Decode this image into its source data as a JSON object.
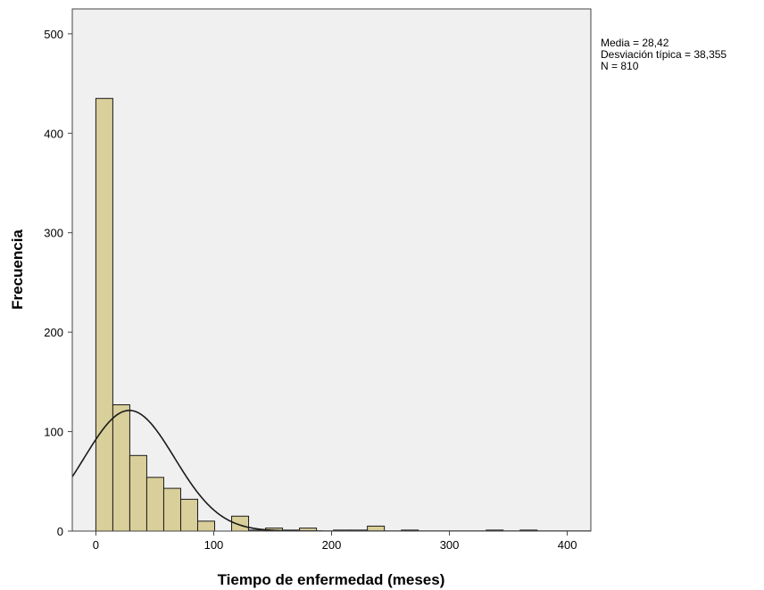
{
  "chart_data": {
    "type": "bar",
    "subtype": "histogram",
    "title": "",
    "xlabel": "Tiempo de enfermedad (meses)",
    "ylabel": "Frecuencia",
    "xlim": [
      -20,
      420
    ],
    "ylim": [
      0,
      525
    ],
    "x_ticks": [
      0,
      100,
      200,
      300,
      400
    ],
    "y_ticks": [
      0,
      100,
      200,
      300,
      400,
      500
    ],
    "bin_width": 14.4,
    "bins": [
      {
        "start": 0,
        "end": 14.4,
        "count": 435
      },
      {
        "start": 14.4,
        "end": 28.8,
        "count": 127
      },
      {
        "start": 28.8,
        "end": 43.2,
        "count": 76
      },
      {
        "start": 43.2,
        "end": 57.6,
        "count": 54
      },
      {
        "start": 57.6,
        "end": 72.0,
        "count": 43
      },
      {
        "start": 72.0,
        "end": 86.4,
        "count": 32
      },
      {
        "start": 86.4,
        "end": 100.8,
        "count": 10
      },
      {
        "start": 100.8,
        "end": 115.2,
        "count": 0
      },
      {
        "start": 115.2,
        "end": 129.6,
        "count": 15
      },
      {
        "start": 129.6,
        "end": 144.0,
        "count": 1
      },
      {
        "start": 144.0,
        "end": 158.4,
        "count": 3
      },
      {
        "start": 158.4,
        "end": 172.8,
        "count": 1
      },
      {
        "start": 172.8,
        "end": 187.2,
        "count": 3
      },
      {
        "start": 187.2,
        "end": 201.6,
        "count": 0
      },
      {
        "start": 201.6,
        "end": 216.0,
        "count": 1
      },
      {
        "start": 216.0,
        "end": 230.4,
        "count": 1
      },
      {
        "start": 230.4,
        "end": 244.8,
        "count": 5
      },
      {
        "start": 244.8,
        "end": 259.2,
        "count": 0
      },
      {
        "start": 259.2,
        "end": 273.6,
        "count": 1
      },
      {
        "start": 273.6,
        "end": 288.0,
        "count": 0
      },
      {
        "start": 288.0,
        "end": 302.4,
        "count": 0
      },
      {
        "start": 302.4,
        "end": 316.8,
        "count": 0
      },
      {
        "start": 316.8,
        "end": 331.2,
        "count": 0
      },
      {
        "start": 331.2,
        "end": 345.6,
        "count": 1
      },
      {
        "start": 345.6,
        "end": 360.0,
        "count": 0
      },
      {
        "start": 360.0,
        "end": 374.4,
        "count": 1
      },
      {
        "start": 374.4,
        "end": 388.8,
        "count": 0
      },
      {
        "start": 388.8,
        "end": 403.2,
        "count": 0
      }
    ],
    "normal_curve": {
      "mean": 28.42,
      "sd": 38.355,
      "n": 810
    },
    "stats_box": {
      "line1": "Media = 28,42",
      "line2": "Desviación típica = 38,355",
      "line3": "N = 810"
    },
    "legend_position": "right",
    "grid": false,
    "colors": {
      "bar_fill": "#d9cf9a",
      "bar_stroke": "#1a1a1a",
      "plot_background": "#f0f0f0",
      "curve": "#1a1a1a"
    }
  }
}
